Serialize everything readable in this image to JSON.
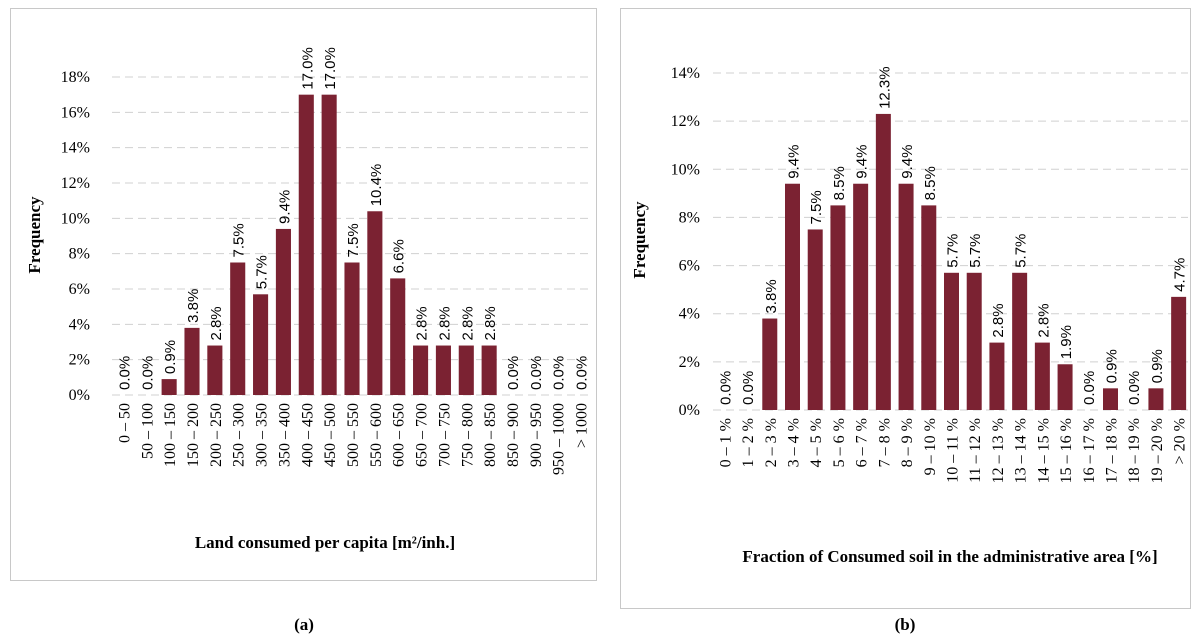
{
  "chart_data": [
    {
      "type": "bar",
      "panel_label": "(a)",
      "x_label": "Land consumed per capita [m²/inh.]",
      "y_label": "Frequency",
      "color": "#7b2232",
      "grid": true,
      "categories": [
        "0 – 50",
        "50 – 100",
        "100 – 150",
        "150 – 200",
        "200 – 250",
        "250 – 300",
        "300 – 350",
        "350 – 400",
        "400 – 450",
        "450 – 500",
        "500 – 550",
        "550 – 600",
        "600 – 650",
        "650 – 700",
        "700 – 750",
        "750 – 800",
        "800 – 850",
        "850 – 900",
        "900 – 950",
        "950 – 1000",
        "> 1000"
      ],
      "values": [
        0.0,
        0.0,
        0.9,
        3.8,
        2.8,
        7.5,
        5.7,
        9.4,
        17.0,
        17.0,
        7.5,
        10.4,
        6.6,
        2.8,
        2.8,
        2.8,
        2.8,
        0.0,
        0.0,
        0.0,
        0.0
      ],
      "value_labels": [
        "0.0%",
        "0.0%",
        "0.9%",
        "3.8%",
        "2.8%",
        "7.5%",
        "5.7%",
        "9.4%",
        "17.0%",
        "17.0%",
        "7.5%",
        "10.4%",
        "6.6%",
        "2.8%",
        "2.8%",
        "2.8%",
        "2.8%",
        "0.0%",
        "0.0%",
        "0.0%",
        "0.0%"
      ],
      "ylim": [
        0,
        18
      ],
      "yticks": [
        {
          "value": 0,
          "label": "0%"
        },
        {
          "value": 2,
          "label": "2%"
        },
        {
          "value": 4,
          "label": "4%"
        },
        {
          "value": 6,
          "label": "6%"
        },
        {
          "value": 8,
          "label": "8%"
        },
        {
          "value": 10,
          "label": "10%"
        },
        {
          "value": 12,
          "label": "12%"
        },
        {
          "value": 14,
          "label": "14%"
        },
        {
          "value": 16,
          "label": "16%"
        },
        {
          "value": 18,
          "label": "18%"
        }
      ]
    },
    {
      "type": "bar",
      "panel_label": "(b)",
      "x_label": "Fraction of Consumed soil in the administrative area [%]",
      "y_label": "Frequency",
      "color": "#7b2232",
      "grid": true,
      "categories": [
        "0 – 1 %",
        "1 – 2 %",
        "2 – 3 %",
        "3 – 4 %",
        "4 – 5 %",
        "5 – 6 %",
        "6 – 7 %",
        "7 – 8 %",
        "8 – 9 %",
        "9 – 10 %",
        "10 – 11 %",
        "11 – 12 %",
        "12 – 13 %",
        "13 – 14 %",
        "14 – 15 %",
        "15 – 16 %",
        "16 – 17 %",
        "17 – 18 %",
        "18 – 19 %",
        "19 – 20 %",
        "> 20 %"
      ],
      "values": [
        0.0,
        0.0,
        3.8,
        9.4,
        7.5,
        8.5,
        9.4,
        12.3,
        9.4,
        8.5,
        5.7,
        5.7,
        2.8,
        5.7,
        2.8,
        1.9,
        0.0,
        0.9,
        0.0,
        0.9,
        4.7
      ],
      "value_labels": [
        "0.0%",
        "0.0%",
        "3.8%",
        "9.4%",
        "7.5%",
        "8.5%",
        "9.4%",
        "12.3%",
        "9.4%",
        "8.5%",
        "5.7%",
        "5.7%",
        "2.8%",
        "5.7%",
        "2.8%",
        "1.9%",
        "0.0%",
        "0.9%",
        "0.0%",
        "0.9%",
        "4.7%"
      ],
      "ylim": [
        0,
        14
      ],
      "yticks": [
        {
          "value": 0,
          "label": "0%"
        },
        {
          "value": 2,
          "label": "2%"
        },
        {
          "value": 4,
          "label": "4%"
        },
        {
          "value": 6,
          "label": "6%"
        },
        {
          "value": 8,
          "label": "8%"
        },
        {
          "value": 10,
          "label": "10%"
        },
        {
          "value": 12,
          "label": "12%"
        },
        {
          "value": 14,
          "label": "14%"
        }
      ]
    }
  ]
}
